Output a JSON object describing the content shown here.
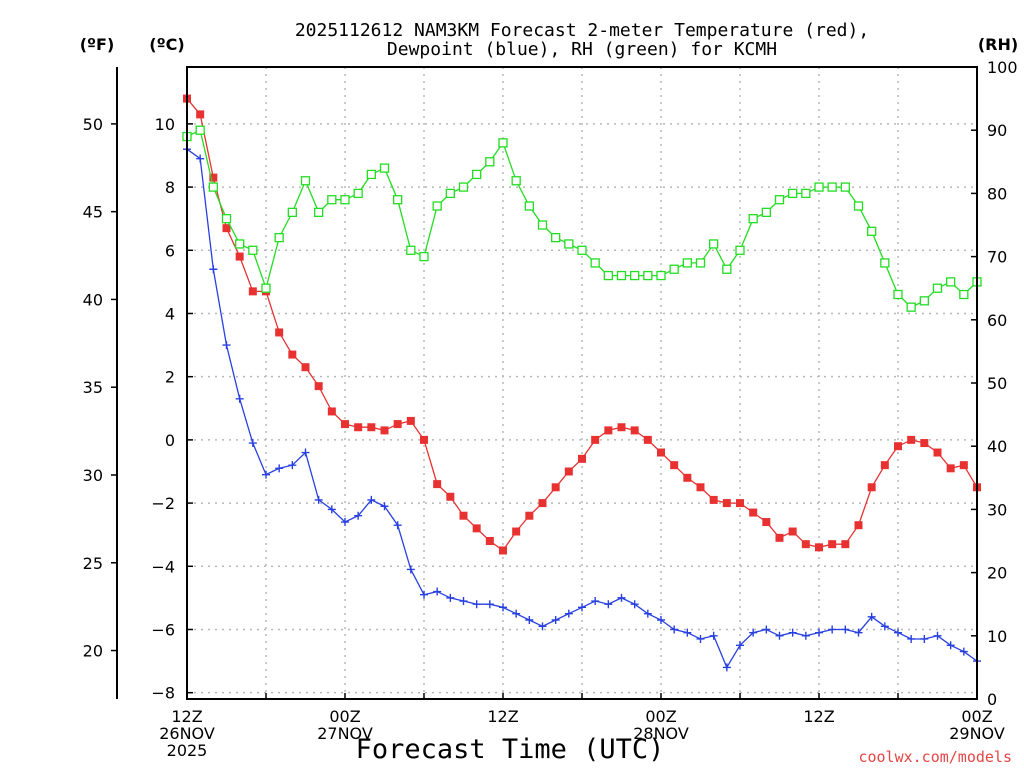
{
  "title_line1": "2025112612 NAM3KM Forecast 2-meter Temperature (red),",
  "title_line2": "Dewpoint (blue), RH (green) for KCMH",
  "units": {
    "fahrenheit": "(ºF)",
    "celsius": "(ºC)",
    "rh": "(RH)"
  },
  "xlabel": "Forecast Time (UTC)",
  "watermark": "coolwx.com/models",
  "x_ticks": [
    {
      "hour": 0,
      "lines": [
        "12Z",
        "26NOV",
        "2025"
      ]
    },
    {
      "hour": 12,
      "lines": [
        "00Z",
        "27NOV"
      ]
    },
    {
      "hour": 24,
      "lines": [
        "12Z"
      ]
    },
    {
      "hour": 36,
      "lines": [
        "00Z",
        "28NOV"
      ]
    },
    {
      "hour": 48,
      "lines": [
        "12Z"
      ]
    },
    {
      "hour": 60,
      "lines": [
        "00Z",
        "29NOV"
      ]
    }
  ],
  "chart_data": {
    "type": "line",
    "title": "2025112612 NAM3KM Forecast 2-meter Temperature (red), Dewpoint (blue), RH (green) for KCMH",
    "xlabel": "Forecast Time (UTC)",
    "x_unit": "forecast hour",
    "xlim": [
      0,
      60
    ],
    "x": [
      0,
      1,
      2,
      3,
      4,
      5,
      6,
      7,
      8,
      9,
      10,
      11,
      12,
      13,
      14,
      15,
      16,
      17,
      18,
      19,
      20,
      21,
      22,
      23,
      24,
      25,
      26,
      27,
      28,
      29,
      30,
      31,
      32,
      33,
      34,
      35,
      36,
      37,
      38,
      39,
      40,
      41,
      42,
      43,
      44,
      45,
      46,
      47,
      48,
      49,
      50,
      51,
      52,
      53,
      54,
      55,
      56,
      57,
      58,
      59,
      60
    ],
    "left_axis": {
      "label": "(ºC)",
      "ylim": [
        -8.2,
        11.8
      ],
      "ticks": [
        -8,
        -6,
        -4,
        -2,
        0,
        2,
        4,
        6,
        8,
        10
      ]
    },
    "fahrenheit_axis": {
      "label": "(ºF)",
      "ticks": [
        20,
        25,
        30,
        35,
        40,
        45,
        50
      ]
    },
    "right_axis": {
      "label": "(RH)",
      "ylim": [
        0,
        100
      ],
      "ticks": [
        0,
        10,
        20,
        30,
        40,
        50,
        60,
        70,
        80,
        90,
        100
      ]
    },
    "series": [
      {
        "name": "2-meter Temperature",
        "axis": "celsius",
        "color": "#e83232",
        "marker": "filled-square",
        "values": [
          10.8,
          10.3,
          8.3,
          6.7,
          5.8,
          4.7,
          4.7,
          3.4,
          2.7,
          2.3,
          1.7,
          0.9,
          0.5,
          0.4,
          0.4,
          0.3,
          0.5,
          0.6,
          0.0,
          -1.4,
          -1.8,
          -2.4,
          -2.8,
          -3.2,
          -3.5,
          -2.9,
          -2.4,
          -2.0,
          -1.5,
          -1.0,
          -0.6,
          0.0,
          0.3,
          0.4,
          0.3,
          0.0,
          -0.4,
          -0.8,
          -1.2,
          -1.5,
          -1.9,
          -2.0,
          -2.0,
          -2.3,
          -2.6,
          -3.1,
          -2.9,
          -3.3,
          -3.4,
          -3.3,
          -3.3,
          -2.7,
          -1.5,
          -0.8,
          -0.2,
          0.0,
          -0.1,
          -0.4,
          -0.9,
          -0.8,
          -1.5
        ]
      },
      {
        "name": "Dewpoint",
        "axis": "celsius",
        "color": "#2840e0",
        "marker": "plus",
        "values": [
          9.2,
          8.9,
          5.4,
          3.0,
          1.3,
          -0.1,
          -1.1,
          -0.9,
          -0.8,
          -0.4,
          -1.9,
          -2.2,
          -2.6,
          -2.4,
          -1.9,
          -2.1,
          -2.7,
          -4.1,
          -4.9,
          -4.8,
          -5.0,
          -5.1,
          -5.2,
          -5.2,
          -5.3,
          -5.5,
          -5.7,
          -5.9,
          -5.7,
          -5.5,
          -5.3,
          -5.1,
          -5.2,
          -5.0,
          -5.2,
          -5.5,
          -5.7,
          -6.0,
          -6.1,
          -6.3,
          -6.2,
          -7.2,
          -6.5,
          -6.1,
          -6.0,
          -6.2,
          -6.1,
          -6.2,
          -6.1,
          -6.0,
          -6.0,
          -6.1,
          -5.6,
          -5.9,
          -6.1,
          -6.3,
          -6.3,
          -6.2,
          -6.5,
          -6.7,
          -7.0
        ]
      },
      {
        "name": "RH",
        "axis": "rh",
        "color": "#22dd22",
        "marker": "open-square",
        "values": [
          89,
          90,
          81,
          76,
          72,
          71,
          65,
          73,
          77,
          82,
          77,
          79,
          79,
          80,
          83,
          84,
          79,
          71,
          70,
          78,
          80,
          81,
          83,
          85,
          88,
          82,
          78,
          75,
          73,
          72,
          71,
          69,
          67,
          67,
          67,
          67,
          67,
          68,
          69,
          69,
          72,
          68,
          71,
          76,
          77,
          79,
          80,
          80,
          81,
          81,
          81,
          78,
          74,
          69,
          64,
          62,
          63,
          65,
          66,
          64,
          66
        ]
      }
    ]
  }
}
